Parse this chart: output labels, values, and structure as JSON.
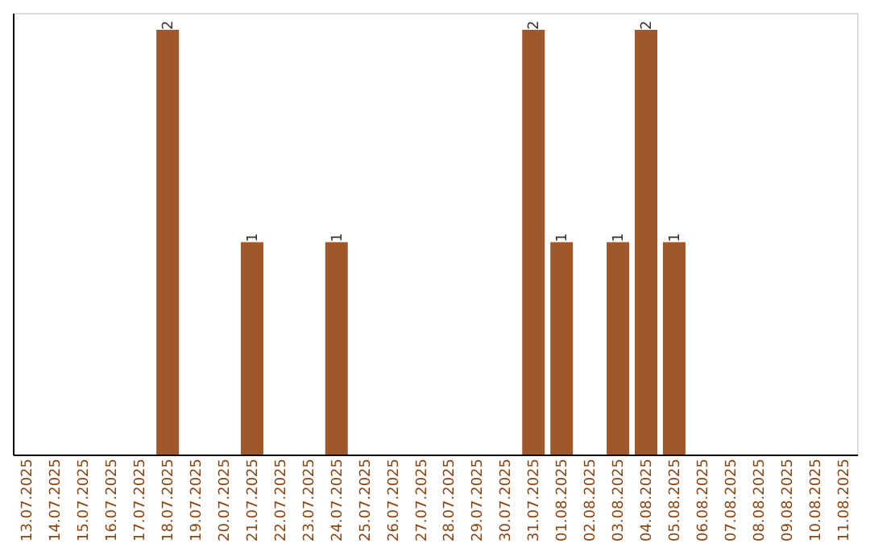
{
  "chart_data": {
    "type": "bar",
    "categories": [
      "13.07.2025",
      "14.07.2025",
      "15.07.2025",
      "16.07.2025",
      "17.07.2025",
      "18.07.2025",
      "19.07.2025",
      "20.07.2025",
      "21.07.2025",
      "22.07.2025",
      "23.07.2025",
      "24.07.2025",
      "25.07.2025",
      "26.07.2025",
      "27.07.2025",
      "28.07.2025",
      "29.07.2025",
      "30.07.2025",
      "31.07.2025",
      "01.08.2025",
      "02.08.2025",
      "03.08.2025",
      "04.08.2025",
      "05.08.2025",
      "06.08.2025",
      "07.08.2025",
      "08.08.2025",
      "09.08.2025",
      "10.08.2025",
      "11.08.2025"
    ],
    "values": [
      0,
      0,
      0,
      0,
      0,
      2,
      0,
      0,
      1,
      0,
      0,
      1,
      0,
      0,
      0,
      0,
      0,
      0,
      2,
      1,
      0,
      1,
      2,
      1,
      0,
      0,
      0,
      0,
      0,
      0
    ],
    "value_labels": [
      null,
      null,
      null,
      null,
      null,
      "2",
      null,
      null,
      "1",
      null,
      null,
      "1",
      null,
      null,
      null,
      null,
      null,
      null,
      "2",
      "1",
      null,
      "1",
      "2",
      "1",
      null,
      null,
      null,
      null,
      null,
      null
    ],
    "color": "#a0582a",
    "grid": false,
    "tick_labels": "x"
  }
}
